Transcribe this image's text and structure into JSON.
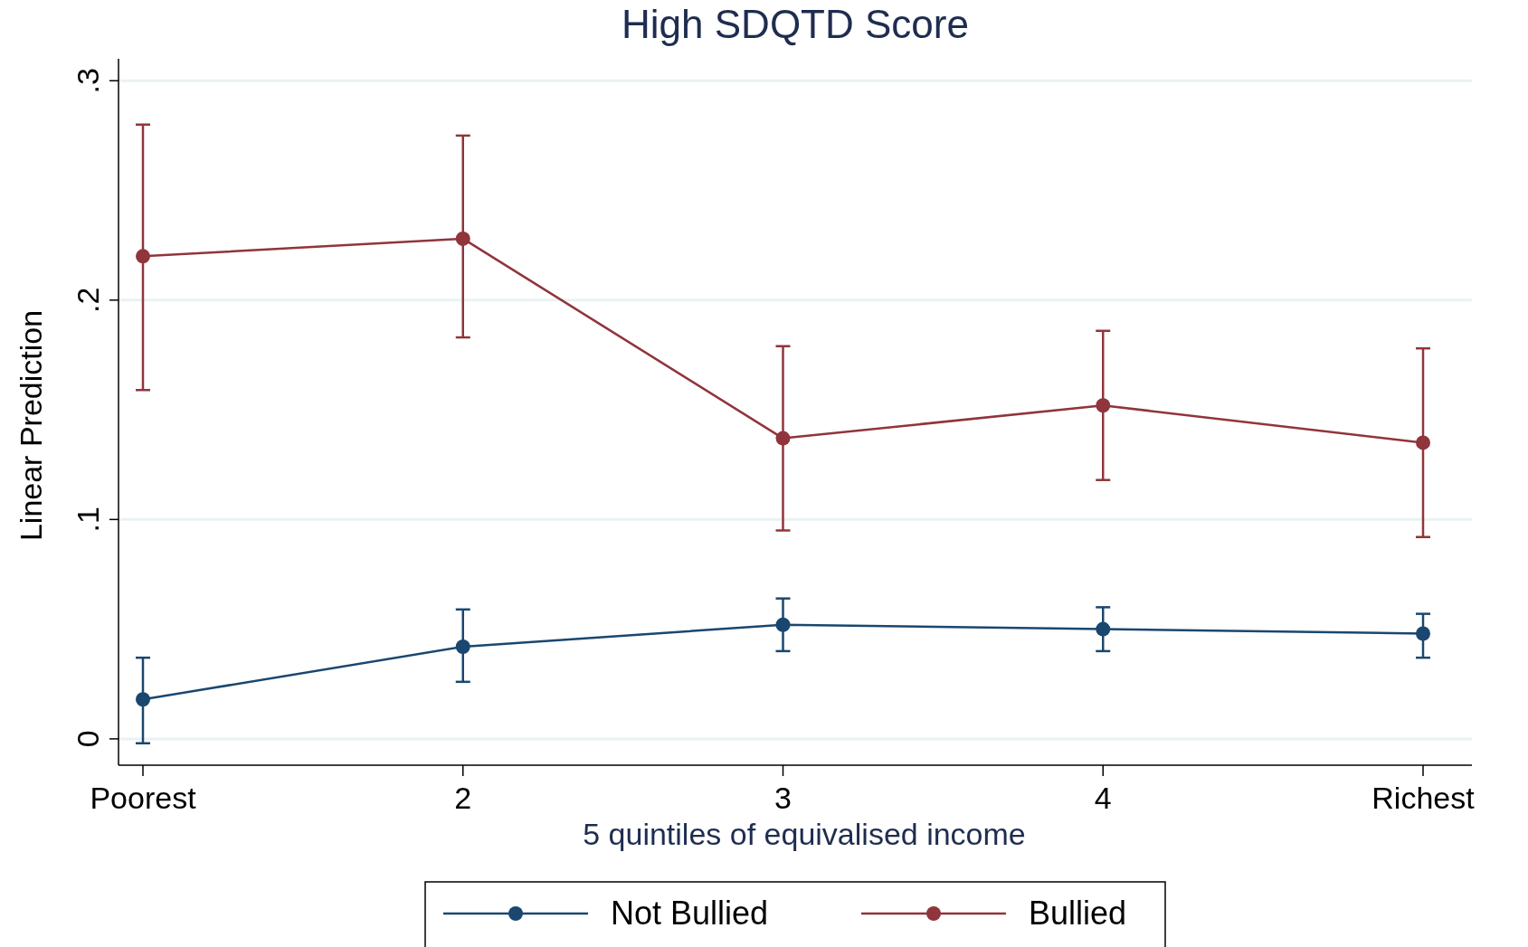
{
  "chart_data": {
    "type": "line",
    "title": "High SDQTD Score",
    "xlabel": "5 quintiles of equivalised income",
    "ylabel": "Linear Prediction",
    "categories": [
      "Poorest",
      "2",
      "3",
      "4",
      "Richest"
    ],
    "series": [
      {
        "name": "Not Bullied",
        "color": "#1a476f",
        "values": [
          0.018,
          0.042,
          0.052,
          0.05,
          0.048
        ],
        "errors": [
          [
            -0.002,
            0.037
          ],
          [
            0.026,
            0.059
          ],
          [
            0.04,
            0.064
          ],
          [
            0.04,
            0.06
          ],
          [
            0.037,
            0.057
          ]
        ]
      },
      {
        "name": "Bullied",
        "color": "#90353b",
        "values": [
          0.22,
          0.228,
          0.137,
          0.152,
          0.135
        ],
        "errors": [
          [
            0.159,
            0.28
          ],
          [
            0.183,
            0.275
          ],
          [
            0.095,
            0.179
          ],
          [
            0.118,
            0.186
          ],
          [
            0.092,
            0.178
          ]
        ]
      }
    ],
    "ylim": [
      -0.012,
      0.31
    ],
    "yticks": [
      {
        "value": 0,
        "label": "0"
      },
      {
        "value": 0.1,
        "label": ".1"
      },
      {
        "value": 0.2,
        "label": ".2"
      },
      {
        "value": 0.3,
        "label": ".3"
      }
    ],
    "grid": "y",
    "legend": "bottom",
    "marker": "circle",
    "line_style": "solid"
  }
}
